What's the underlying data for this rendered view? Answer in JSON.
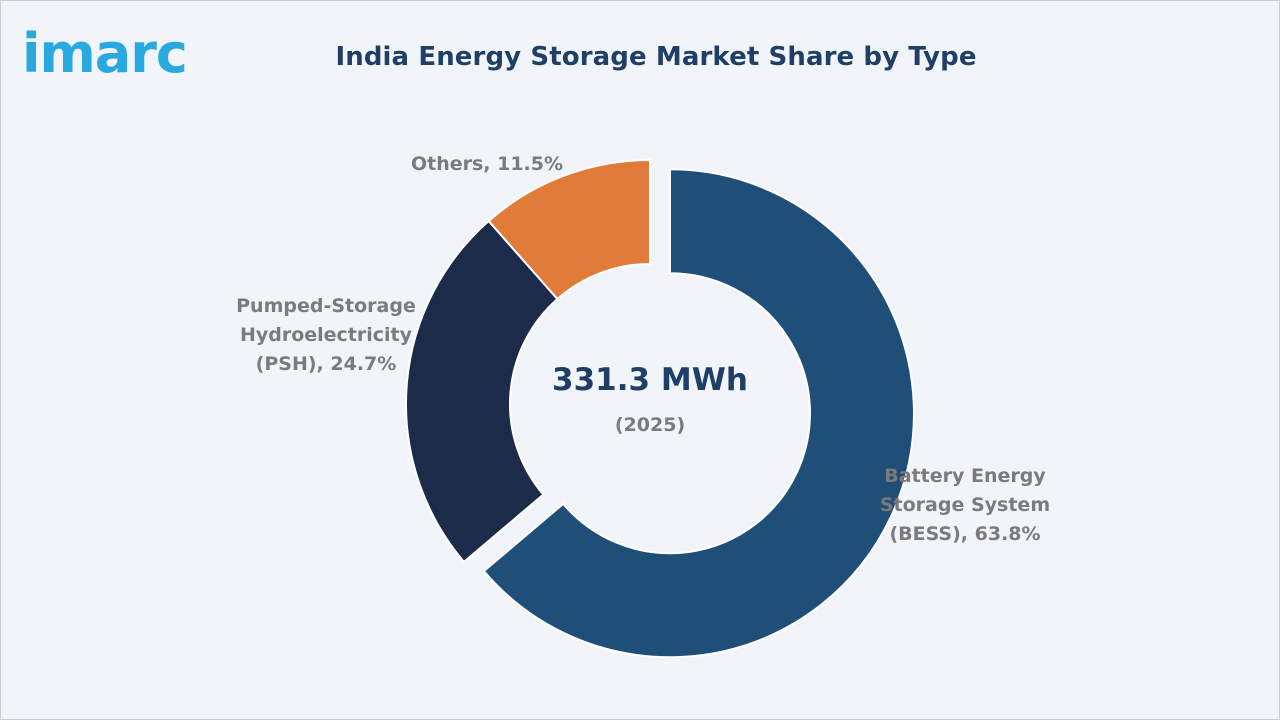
{
  "brand": {
    "logo_text": "imarc",
    "accent": "#29a9e0"
  },
  "title": "India Energy Storage Market Share by Type",
  "center": {
    "value": "331.3 MWh",
    "year": "(2025)"
  },
  "chart_data": {
    "type": "pie",
    "style": "donut",
    "title": "India Energy Storage Market Share by Type",
    "unit": "%",
    "slices": [
      {
        "label": "Battery Energy\nStorage System\n(BESS), 63.8%",
        "name": "Battery Energy Storage System (BESS)",
        "value": 63.8,
        "color": "#1f4e79"
      },
      {
        "label": "Pumped-Storage\nHydroelectricity\n(PSH), 24.7%",
        "name": "Pumped-Storage Hydroelectricity (PSH)",
        "value": 24.7,
        "color": "#1c2b4a"
      },
      {
        "label": "Others, 11.5%",
        "name": "Others",
        "value": 11.5,
        "color": "#e07b39"
      }
    ]
  }
}
